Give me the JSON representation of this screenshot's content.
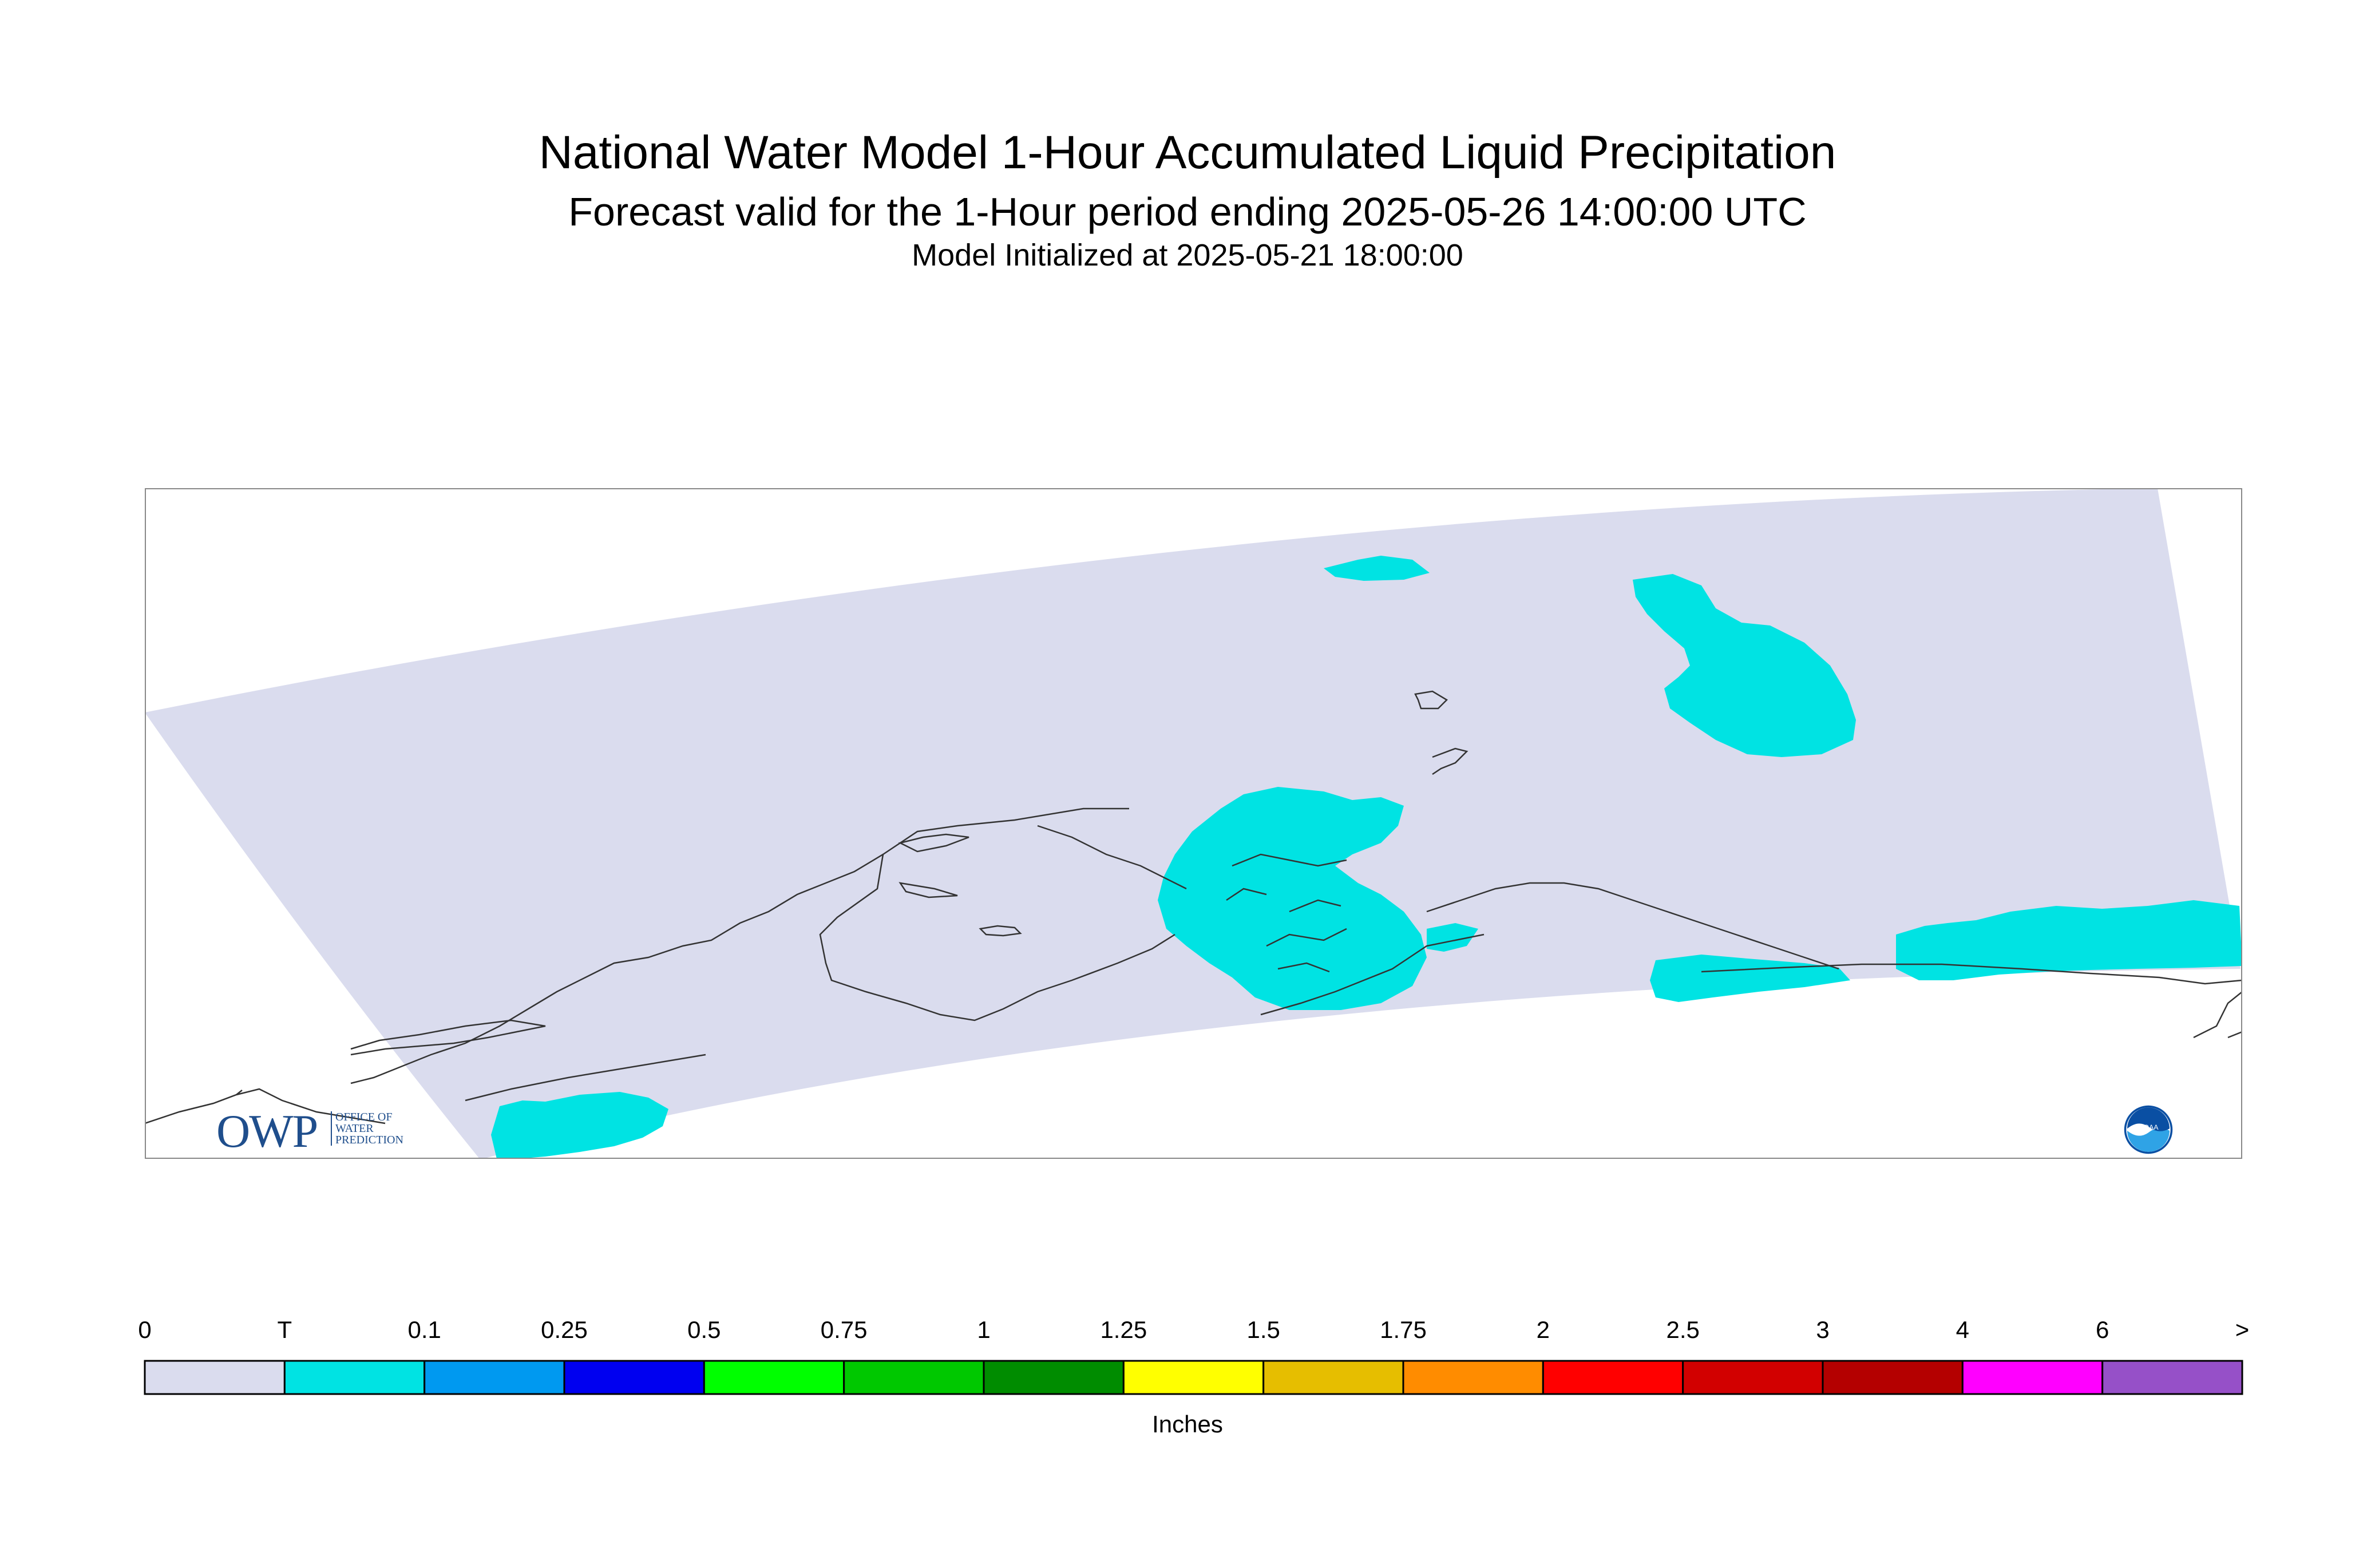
{
  "title": "National Water Model 1-Hour Accumulated Liquid Precipitation",
  "subtitle": "Forecast valid for the 1-Hour period ending 2025-05-26 14:00:00 UTC",
  "init_line": "Model Initialized at 2025-05-21 18:00:00",
  "legend": {
    "units": "Inches",
    "tick_labels": [
      "0",
      "T",
      "0.1",
      "0.25",
      "0.5",
      "0.75",
      "1",
      "1.25",
      "1.5",
      "1.75",
      "2",
      "2.5",
      "3",
      "4",
      "6",
      ">"
    ],
    "colors": [
      "#dadcee",
      "#00e3e3",
      "#0099f0",
      "#0000f0",
      "#00ff00",
      "#00c800",
      "#008c00",
      "#ffff00",
      "#e6be00",
      "#ff8c00",
      "#ff0000",
      "#d20000",
      "#b40000",
      "#ff00ff",
      "#9650c8"
    ]
  },
  "logos": {
    "owp": {
      "word": "OWP",
      "lines": [
        "OFFICE OF",
        "WATER",
        "PREDICTION"
      ]
    },
    "noaa": {
      "word": "NOAA"
    }
  },
  "map": {
    "domain_fill": "#dadcee",
    "precip_fill": "#00e3e3",
    "coast_color": "#333333",
    "precip_category": "T"
  }
}
